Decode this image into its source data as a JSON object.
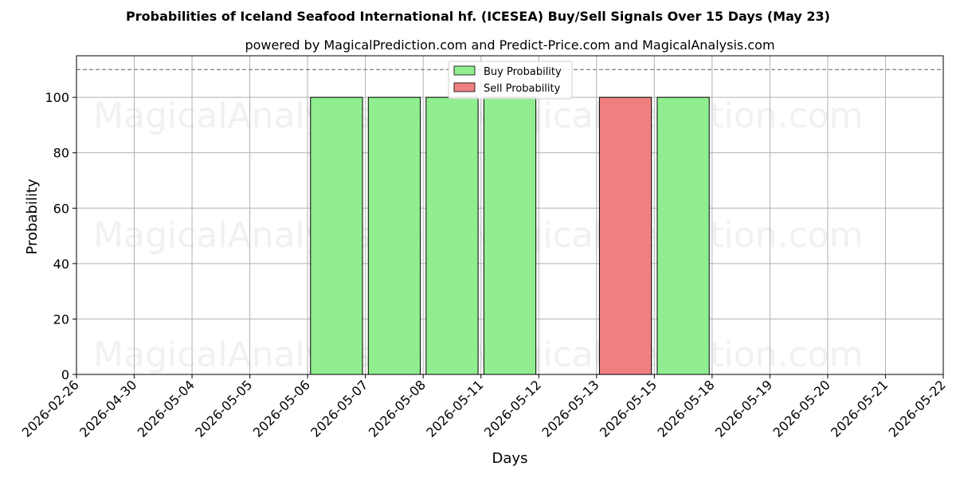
{
  "chart_data": {
    "type": "bar",
    "title": "Probabilities of Iceland Seafood International hf. (ICESEA) Buy/Sell Signals Over 15 Days (May 23)",
    "subtitle": "powered by MagicalPrediction.com and Predict-Price.com and MagicalAnalysis.com",
    "xlabel": "Days",
    "ylabel": "Probability",
    "ylim": [
      0,
      115
    ],
    "yticks": [
      0,
      20,
      40,
      60,
      80,
      100
    ],
    "reference_line": 110,
    "grid": true,
    "legend_position": "top-center",
    "categories": [
      "2026-02-26",
      "2026-04-30",
      "2026-05-04",
      "2026-05-05",
      "2026-05-06",
      "2026-05-07",
      "2026-05-08",
      "2026-05-11",
      "2026-05-12",
      "2026-05-13",
      "2026-05-15",
      "2026-05-18",
      "2026-05-19",
      "2026-05-20",
      "2026-05-21",
      "2026-05-22"
    ],
    "series": [
      {
        "name": "Buy Probability",
        "color": "#90ee90",
        "bars": [
          {
            "date": "2026-05-06",
            "value": 100
          },
          {
            "date": "2026-05-07",
            "value": 100
          },
          {
            "date": "2026-05-08",
            "value": 100
          },
          {
            "date": "2026-05-11",
            "value": 100
          },
          {
            "date": "2026-05-15",
            "value": 100
          }
        ]
      },
      {
        "name": "Sell Probability",
        "color": "#f08080",
        "bars": [
          {
            "date": "2026-05-13",
            "value": 100
          }
        ]
      }
    ],
    "watermarks": [
      "MagicalAnalysis.com",
      "MagicalPrediction.com",
      "MagicalAnalysis.com",
      "MagicalPrediction.com",
      "MagicalAnalysis.com",
      "MagicalPrediction.com"
    ]
  }
}
